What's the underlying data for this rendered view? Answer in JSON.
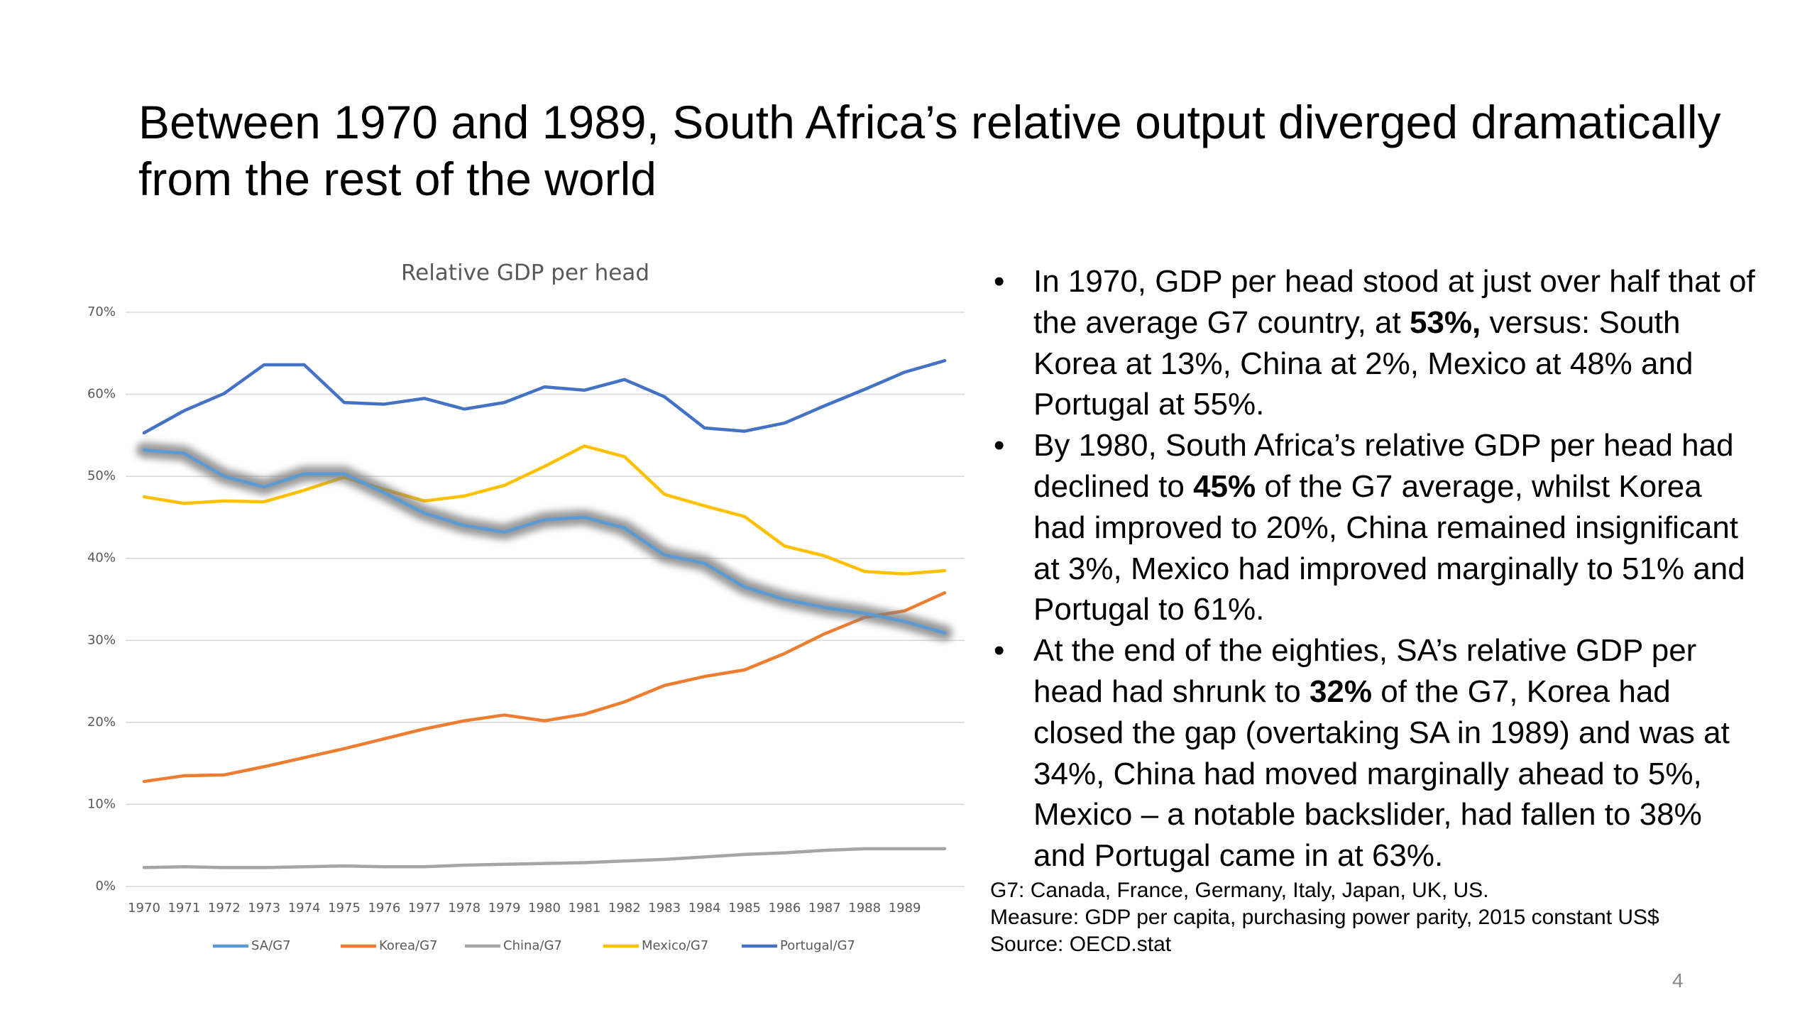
{
  "slide_title": "Between 1970 and 1989, South Africa’s relative output diverged dramatically from the rest of the world",
  "bullets": [
    {
      "runs": [
        {
          "text": "In 1970, GDP per head stood at just over half that of the average G7 country, at "
        },
        {
          "text": "53%,",
          "bold": true
        },
        {
          "text": " versus: South Korea  at 13%, China at 2%, Mexico at 48% and Portugal at 55%."
        }
      ]
    },
    {
      "runs": [
        {
          "text": "By 1980, South Africa’s relative GDP per head had declined to "
        },
        {
          "text": "45%",
          "bold": true
        },
        {
          "text": " of the G7 average, whilst Korea had improved to 20%, China remained insignificant at 3%, Mexico had improved marginally to 51% and Portugal to 61%."
        }
      ]
    },
    {
      "runs": [
        {
          "text": "At the end of the eighties, SA’s relative GDP per head had shrunk to "
        },
        {
          "text": "32%",
          "bold": true
        },
        {
          "text": " of the G7, Korea had closed the gap (overtaking SA in 1989) and was at 34%, China had moved marginally ahead to 5%, Mexico – a notable backslider, had fallen to 38% and Portugal came in at 63%."
        }
      ]
    }
  ],
  "notes": [
    "G7: Canada, France, Germany, Italy, Japan, UK, US.",
    "Measure: GDP per capita, purchasing power parity, 2015 constant US$",
    "Source: OECD.stat"
  ],
  "page_number": "4",
  "chart_data": {
    "type": "line",
    "title": "Relative GDP per head",
    "categories": [
      "1970",
      "1971",
      "1972",
      "1973",
      "1974",
      "1975",
      "1976",
      "1977",
      "1978",
      "1979",
      "1980",
      "1981",
      "1982",
      "1983",
      "1984",
      "1985",
      "1986",
      "1987",
      "1988",
      "1989",
      null
    ],
    "series": [
      {
        "name": "SA/G7",
        "color": "#5b9bd5",
        "highlight": true,
        "values": [
          53.2,
          52.8,
          50,
          48.7,
          50.3,
          50.3,
          48,
          45.5,
          44,
          43.2,
          44.7,
          45,
          43.7,
          40.4,
          39.4,
          36.5,
          35,
          34,
          33.3,
          32.3,
          30.9
        ]
      },
      {
        "name": "Korea/G7",
        "color": "#ed7d31",
        "values": [
          12.8,
          13.5,
          13.6,
          14.6,
          15.7,
          16.8,
          18,
          19.2,
          20.2,
          20.9,
          20.2,
          21,
          22.5,
          24.5,
          25.6,
          26.4,
          28.4,
          30.8,
          32.8,
          33.6,
          35.8
        ]
      },
      {
        "name": "China/G7",
        "color": "#a5a5a5",
        "values": [
          2.3,
          2.4,
          2.3,
          2.3,
          2.4,
          2.5,
          2.4,
          2.4,
          2.6,
          2.7,
          2.8,
          2.9,
          3.1,
          3.3,
          3.6,
          3.9,
          4.1,
          4.4,
          4.6,
          4.6,
          4.6
        ]
      },
      {
        "name": "Mexico/G7",
        "color": "#ffc000",
        "values": [
          47.5,
          46.7,
          47,
          46.9,
          48.3,
          49.9,
          48.4,
          47,
          47.6,
          48.9,
          51.2,
          53.7,
          52.4,
          47.8,
          46.4,
          45.1,
          41.5,
          40.3,
          38.4,
          38.1,
          38.5
        ]
      },
      {
        "name": "Portugal/G7",
        "color": "#4472c4",
        "values": [
          55.3,
          58,
          60.1,
          63.6,
          63.6,
          59,
          58.8,
          59.5,
          58.2,
          59,
          60.9,
          60.5,
          61.8,
          59.7,
          55.9,
          55.5,
          56.5,
          58.6,
          60.6,
          62.7,
          64.1
        ]
      }
    ],
    "ylim": [
      0,
      70
    ],
    "yticks": [
      {
        "value": 0,
        "label": "0%"
      },
      {
        "value": 10,
        "label": "10%"
      },
      {
        "value": 20,
        "label": "20%"
      },
      {
        "value": 30,
        "label": "30%"
      },
      {
        "value": 40,
        "label": "40%"
      },
      {
        "value": 50,
        "label": "50%"
      },
      {
        "value": 60,
        "label": "60%"
      },
      {
        "value": 70,
        "label": "70%"
      }
    ],
    "grid": true,
    "legend": "bottom"
  }
}
